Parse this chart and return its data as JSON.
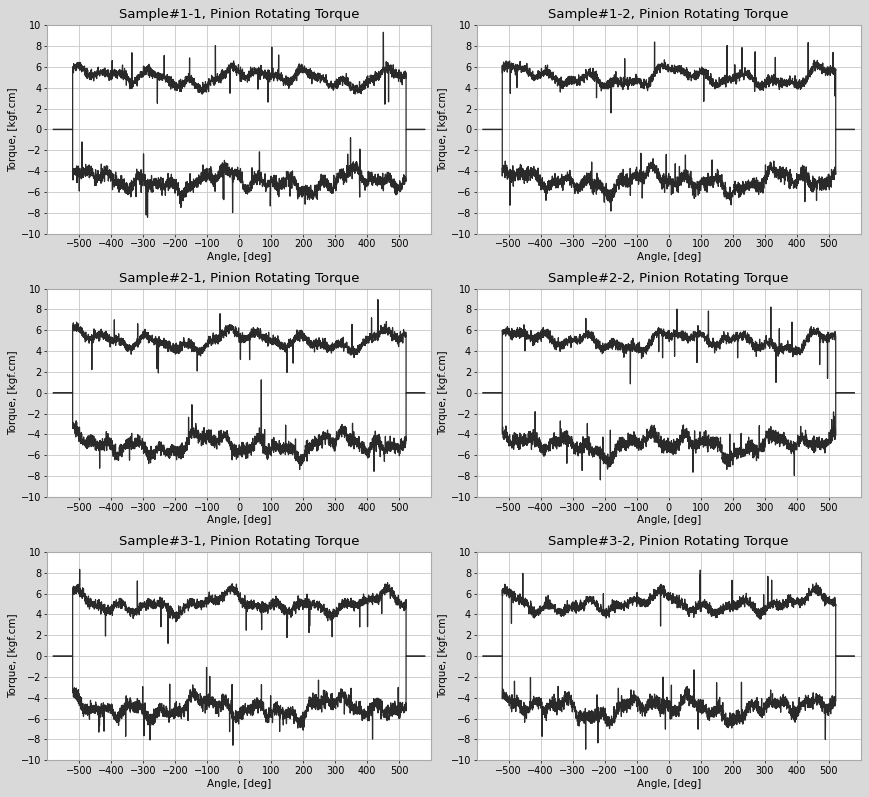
{
  "titles": [
    "Sample#1-1, Pinion Rotating Torque",
    "Sample#1-2, Pinion Rotating Torque",
    "Sample#2-1, Pinion Rotating Torque",
    "Sample#2-2, Pinion Rotating Torque",
    "Sample#3-1, Pinion Rotating Torque",
    "Sample#3-2, Pinion Rotating Torque"
  ],
  "xlabel": "Angle, [deg]",
  "ylabel": "Torque, [kgf.cm]",
  "xlim": [
    -600,
    600
  ],
  "ylim": [
    -10,
    10
  ],
  "xticks": [
    -500,
    -400,
    -300,
    -200,
    -100,
    0,
    100,
    200,
    300,
    400,
    500
  ],
  "yticks": [
    -10,
    -8,
    -6,
    -4,
    -2,
    0,
    2,
    4,
    6,
    8,
    10
  ],
  "line_color": "#2a2a2a",
  "line_width": 0.9,
  "grid_color": "#c8c8c8",
  "bg_color": "#ffffff",
  "fig_bg_color": "#d9d9d9",
  "title_fontsize": 9.5,
  "label_fontsize": 7.5,
  "tick_fontsize": 7,
  "active_start": -520,
  "active_end": 522,
  "upper_base": 5.0,
  "lower_base": -5.0,
  "seeds": [
    11,
    22,
    33,
    44,
    55,
    66
  ]
}
